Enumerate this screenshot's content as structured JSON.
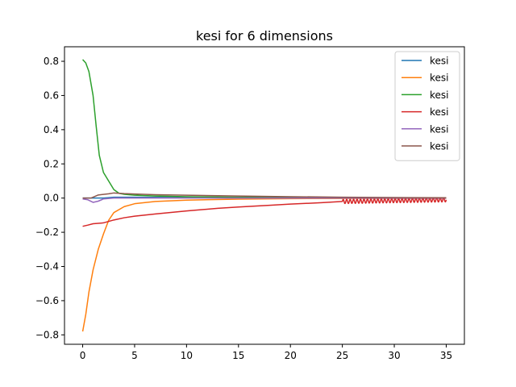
{
  "chart_data": {
    "type": "line",
    "title": "kesi for 6 dimensions",
    "xlabel": "",
    "ylabel": "",
    "xlim": [
      -1.75,
      36.75
    ],
    "ylim": [
      -0.855,
      0.885
    ],
    "xticks": [
      0,
      5,
      10,
      15,
      20,
      25,
      30,
      35
    ],
    "yticks": [
      -0.8,
      -0.6,
      -0.4,
      -0.2,
      0.0,
      0.2,
      0.4,
      0.6,
      0.8
    ],
    "xtick_labels": [
      "0",
      "5",
      "10",
      "15",
      "20",
      "25",
      "30",
      "35"
    ],
    "ytick_labels": [
      "−0.8",
      "−0.6",
      "−0.4",
      "−0.2",
      "0.0",
      "0.2",
      "0.4",
      "0.6",
      "0.8"
    ],
    "grid": false,
    "legend_position": "top-right",
    "series": [
      {
        "name": "kesi",
        "color": "#1f77b4",
        "points": [
          [
            0,
            0.0
          ],
          [
            1,
            0.0
          ],
          [
            2,
            0.0
          ],
          [
            3,
            0.005
          ],
          [
            5,
            0.005
          ],
          [
            10,
            0.003
          ],
          [
            15,
            0.002
          ],
          [
            20,
            0.001
          ],
          [
            25,
            0.0
          ],
          [
            35,
            0.0
          ]
        ]
      },
      {
        "name": "kesi",
        "color": "#ff7f0e",
        "points": [
          [
            0,
            -0.78
          ],
          [
            0.3,
            -0.68
          ],
          [
            0.6,
            -0.55
          ],
          [
            1,
            -0.42
          ],
          [
            1.5,
            -0.3
          ],
          [
            2,
            -0.21
          ],
          [
            2.5,
            -0.13
          ],
          [
            3,
            -0.085
          ],
          [
            4,
            -0.05
          ],
          [
            5,
            -0.033
          ],
          [
            7,
            -0.02
          ],
          [
            10,
            -0.012
          ],
          [
            15,
            -0.006
          ],
          [
            20,
            -0.003
          ],
          [
            25,
            -0.002
          ],
          [
            35,
            -0.001
          ]
        ]
      },
      {
        "name": "kesi",
        "color": "#2ca02c",
        "points": [
          [
            0,
            0.81
          ],
          [
            0.3,
            0.79
          ],
          [
            0.6,
            0.74
          ],
          [
            1,
            0.6
          ],
          [
            1.3,
            0.42
          ],
          [
            1.6,
            0.25
          ],
          [
            2,
            0.15
          ],
          [
            2.5,
            0.1
          ],
          [
            3,
            0.05
          ],
          [
            3.5,
            0.028
          ],
          [
            4,
            0.022
          ],
          [
            5,
            0.017
          ],
          [
            7,
            0.012
          ],
          [
            10,
            0.008
          ],
          [
            15,
            0.005
          ],
          [
            20,
            0.003
          ],
          [
            25,
            0.002
          ],
          [
            35,
            0.0
          ]
        ]
      },
      {
        "name": "kesi",
        "color": "#d62728",
        "points": [
          [
            0,
            -0.165
          ],
          [
            0.5,
            -0.158
          ],
          [
            1,
            -0.15
          ],
          [
            2,
            -0.145
          ],
          [
            3,
            -0.128
          ],
          [
            4,
            -0.115
          ],
          [
            5,
            -0.106
          ],
          [
            7,
            -0.093
          ],
          [
            10,
            -0.075
          ],
          [
            13,
            -0.06
          ],
          [
            15,
            -0.052
          ],
          [
            18,
            -0.042
          ],
          [
            20,
            -0.035
          ],
          [
            23,
            -0.027
          ],
          [
            25,
            -0.02
          ],
          [
            35,
            -0.01
          ]
        ],
        "oscillation": {
          "x_start": 25,
          "x_end": 35,
          "amplitude": 0.012,
          "cycles": 30
        }
      },
      {
        "name": "kesi",
        "color": "#9467bd",
        "points": [
          [
            0,
            -0.005
          ],
          [
            0.5,
            -0.01
          ],
          [
            1,
            -0.025
          ],
          [
            1.5,
            -0.018
          ],
          [
            2,
            -0.005
          ],
          [
            3,
            0.0
          ],
          [
            5,
            0.0
          ],
          [
            10,
            0.0
          ],
          [
            35,
            0.0
          ]
        ]
      },
      {
        "name": "kesi",
        "color": "#8c564b",
        "points": [
          [
            0,
            0.0
          ],
          [
            0.8,
            0.0
          ],
          [
            1.5,
            0.018
          ],
          [
            2.5,
            0.025
          ],
          [
            3,
            0.03
          ],
          [
            4,
            0.026
          ],
          [
            5,
            0.024
          ],
          [
            7,
            0.02
          ],
          [
            10,
            0.017
          ],
          [
            15,
            0.012
          ],
          [
            20,
            0.008
          ],
          [
            25,
            0.005
          ],
          [
            30,
            0.003
          ],
          [
            35,
            0.002
          ]
        ]
      }
    ]
  }
}
